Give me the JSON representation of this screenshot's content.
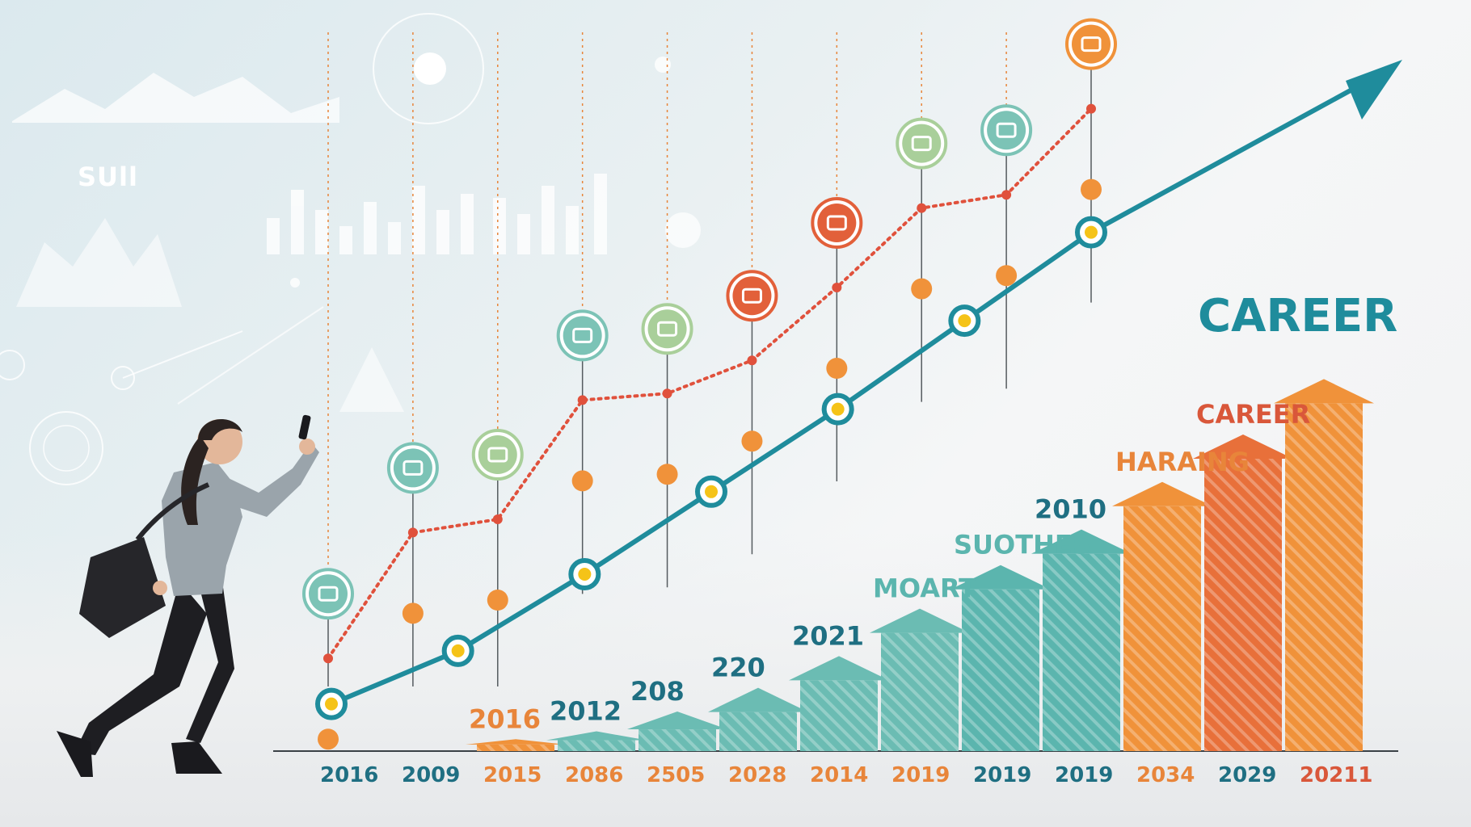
{
  "background": {
    "text": "SUll"
  },
  "chart_data": {
    "type": "bar",
    "title": "CAREER",
    "subtitle_labels": [
      "CAREER",
      "HARAING",
      "2010",
      "SUOTHES",
      "MOART",
      "2021",
      "220",
      "208",
      "2012",
      "2016"
    ],
    "x_tick_labels": [
      "2016",
      "2009",
      "2015",
      "2086",
      "2505",
      "2028",
      "2014",
      "2019",
      "2019",
      "2019",
      "2034",
      "2029",
      "20211"
    ],
    "bars": [
      {
        "label": "2016",
        "level": 0.03,
        "color": "#f0923a"
      },
      {
        "label": "2012",
        "level": 0.05,
        "color": "#6bbcb3"
      },
      {
        "label": "208",
        "level": 0.1,
        "color": "#6bbcb3"
      },
      {
        "label": "220",
        "level": 0.16,
        "color": "#6bbcb3"
      },
      {
        "label": "2021",
        "level": 0.24,
        "color": "#6bbcb3"
      },
      {
        "label": "MOART",
        "level": 0.36,
        "color": "#6bbcb3"
      },
      {
        "label": "SUOTHES",
        "level": 0.47,
        "color": "#5bb5ae"
      },
      {
        "label": "2010",
        "level": 0.56,
        "color": "#5bb5ae"
      },
      {
        "label": "HARAING",
        "level": 0.68,
        "color": "#f0923a"
      },
      {
        "label": "CAREER",
        "level": 0.8,
        "color": "#e8703a"
      },
      {
        "label": "",
        "level": 0.94,
        "color": "#f0923a"
      }
    ],
    "trend_line": {
      "color": "#1f8c9c",
      "points": [
        0.08,
        0.17,
        0.3,
        0.44,
        0.58,
        0.73,
        0.88
      ]
    },
    "dotted_line": {
      "color": "#e0513c",
      "points": [
        0.14,
        0.33,
        0.35,
        0.53,
        0.54,
        0.59,
        0.7,
        0.82,
        0.84,
        0.97
      ]
    },
    "milestone_icons": [
      {
        "icon": "certificate-icon",
        "color": "#7cc3b6"
      },
      {
        "icon": "trophy-icon",
        "color": "#7cc3b6"
      },
      {
        "icon": "book-icon",
        "color": "#a9cf9a"
      },
      {
        "icon": "accessibility-icon",
        "color": "#7cc3b6"
      },
      {
        "icon": "briefcase-icon",
        "color": "#a9cf9a"
      },
      {
        "icon": "cake-icon",
        "color": "#e2603a"
      },
      {
        "icon": "check-icon",
        "color": "#e2603a"
      },
      {
        "icon": "bus-icon",
        "color": "#a9cf9a"
      },
      {
        "icon": "folder-icon",
        "color": "#7cc3b6"
      },
      {
        "icon": "target-icon",
        "color": "#f0923a"
      }
    ],
    "colors": {
      "teal": "#1f8c9c",
      "orange": "#f0923a",
      "red": "#e2603a",
      "green": "#5bb5ae"
    }
  }
}
